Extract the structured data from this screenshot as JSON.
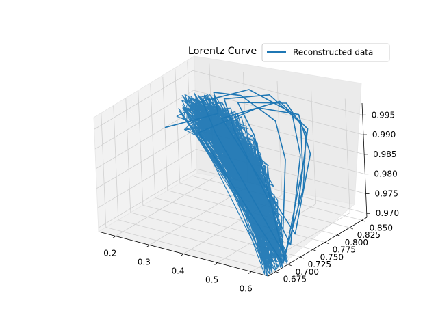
{
  "chart_data": {
    "type": "line",
    "projection": "3d",
    "title": "Lorentz Curve",
    "legend": {
      "placement": "top-right",
      "entries": [
        "Reconstructed data"
      ]
    },
    "x_ticks": [
      "0.2",
      "0.3",
      "0.4",
      "0.5",
      "0.6"
    ],
    "y_ticks": [
      "0.675",
      "0.700",
      "0.725",
      "0.750",
      "0.775",
      "0.800",
      "0.825",
      "0.850"
    ],
    "z_ticks": [
      "0.970",
      "0.975",
      "0.980",
      "0.985",
      "0.990",
      "0.995"
    ],
    "xlim": [
      0.15,
      0.65
    ],
    "ylim": [
      0.66,
      0.86
    ],
    "zlim": [
      0.969,
      0.998
    ],
    "grid": true,
    "series": [
      {
        "name": "Reconstructed data",
        "color": "#1f77b4",
        "x": [
          0.15,
          0.28,
          0.24,
          0.32,
          0.45,
          0.52,
          0.62,
          0.3,
          0.22,
          0.33,
          0.47,
          0.55,
          0.63,
          0.34,
          0.27,
          0.39,
          0.51,
          0.57,
          0.64,
          0.4,
          0.31,
          0.44,
          0.54,
          0.6,
          0.65,
          0.25,
          0.37,
          0.49,
          0.58,
          0.63,
          0.29,
          0.42,
          0.53,
          0.61
        ],
        "y": [
          0.8,
          0.82,
          0.84,
          0.84,
          0.82,
          0.79,
          0.71,
          0.8,
          0.83,
          0.85,
          0.84,
          0.8,
          0.72,
          0.81,
          0.84,
          0.85,
          0.83,
          0.79,
          0.7,
          0.81,
          0.84,
          0.85,
          0.82,
          0.77,
          0.69,
          0.8,
          0.84,
          0.84,
          0.8,
          0.73,
          0.82,
          0.85,
          0.83,
          0.75
        ],
        "z": [
          0.985,
          0.99,
          0.993,
          0.994,
          0.992,
          0.986,
          0.971,
          0.987,
          0.991,
          0.995,
          0.993,
          0.987,
          0.972,
          0.988,
          0.992,
          0.995,
          0.992,
          0.985,
          0.97,
          0.988,
          0.992,
          0.994,
          0.991,
          0.982,
          0.97,
          0.986,
          0.992,
          0.993,
          0.988,
          0.974,
          0.989,
          0.994,
          0.991,
          0.978
        ]
      }
    ]
  }
}
